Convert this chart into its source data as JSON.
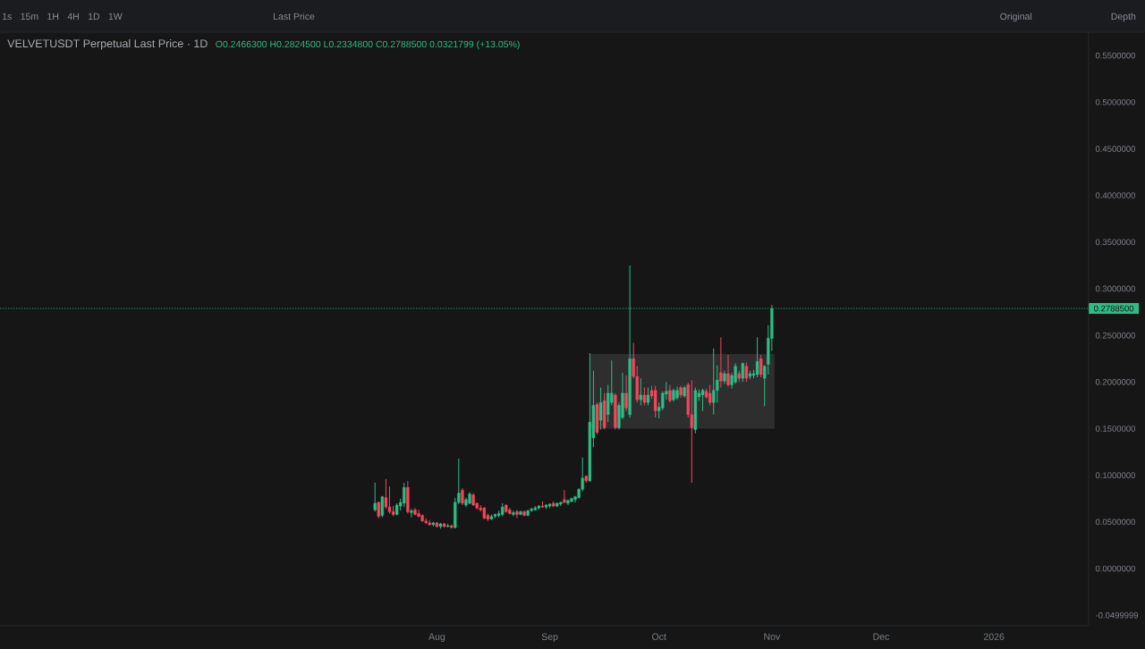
{
  "chart_data": {
    "type": "candlestick",
    "title": "VELVETUSDT Perpetual Last Price · 1D",
    "subtitle": "O0.2466300 H0.2824500 L0.2334800 C0.2788500 0.0321799 (+13.05%)",
    "annotations": [
      "1s",
      "15m",
      "1H",
      "4H",
      "1D",
      "1W",
      "Last Price",
      "Original",
      "Depth"
    ],
    "x": [
      "2025-07-15",
      "2025-07-16",
      "2025-07-17",
      "2025-07-18",
      "2025-07-19",
      "2025-07-20",
      "2025-07-21",
      "2025-07-22",
      "2025-07-23",
      "2025-07-24",
      "2025-07-25",
      "2025-07-26",
      "2025-07-27",
      "2025-07-28",
      "2025-07-29",
      "2025-07-30",
      "2025-07-31",
      "2025-08-01",
      "2025-08-02",
      "2025-08-03",
      "2025-08-04",
      "2025-08-05",
      "2025-08-06",
      "2025-08-07",
      "2025-08-08",
      "2025-08-09",
      "2025-08-10",
      "2025-08-11",
      "2025-08-12",
      "2025-08-13",
      "2025-08-14",
      "2025-08-15",
      "2025-08-16",
      "2025-08-17",
      "2025-08-18",
      "2025-08-19",
      "2025-08-20",
      "2025-08-21",
      "2025-08-22",
      "2025-08-23",
      "2025-08-24",
      "2025-08-25",
      "2025-08-26",
      "2025-08-27",
      "2025-08-28",
      "2025-08-29",
      "2025-08-30",
      "2025-08-31",
      "2025-09-01",
      "2025-09-02",
      "2025-09-03",
      "2025-09-04",
      "2025-09-05",
      "2025-09-06",
      "2025-09-07",
      "2025-09-08",
      "2025-09-09",
      "2025-09-10",
      "2025-09-11",
      "2025-09-12",
      "2025-09-13",
      "2025-09-14",
      "2025-09-15",
      "2025-09-16",
      "2025-09-17",
      "2025-09-18",
      "2025-09-19",
      "2025-09-20",
      "2025-09-21",
      "2025-09-22",
      "2025-09-23",
      "2025-09-24",
      "2025-09-25",
      "2025-09-26",
      "2025-09-27",
      "2025-09-28",
      "2025-09-29",
      "2025-09-30",
      "2025-10-01",
      "2025-10-02",
      "2025-10-03",
      "2025-10-04",
      "2025-10-05",
      "2025-10-06",
      "2025-10-07",
      "2025-10-08",
      "2025-10-09",
      "2025-10-10",
      "2025-10-11",
      "2025-10-12",
      "2025-10-13",
      "2025-10-14",
      "2025-10-15",
      "2025-10-16",
      "2025-10-17",
      "2025-10-18",
      "2025-10-19",
      "2025-10-20",
      "2025-10-21",
      "2025-10-22",
      "2025-10-23",
      "2025-10-24",
      "2025-10-25",
      "2025-10-26",
      "2025-10-27",
      "2025-10-28",
      "2025-10-29",
      "2025-10-30",
      "2025-10-31",
      "2025-11-01"
    ],
    "ohlc": [
      [
        0.063,
        0.092,
        0.061,
        0.07
      ],
      [
        0.071,
        0.072,
        0.054,
        0.056
      ],
      [
        0.057,
        0.078,
        0.055,
        0.077
      ],
      [
        0.076,
        0.096,
        0.064,
        0.066
      ],
      [
        0.066,
        0.088,
        0.059,
        0.061
      ],
      [
        0.061,
        0.067,
        0.056,
        0.058
      ],
      [
        0.058,
        0.07,
        0.057,
        0.068
      ],
      [
        0.067,
        0.075,
        0.062,
        0.071
      ],
      [
        0.07,
        0.092,
        0.066,
        0.087
      ],
      [
        0.087,
        0.094,
        0.059,
        0.061
      ],
      [
        0.06,
        0.064,
        0.055,
        0.062
      ],
      [
        0.063,
        0.065,
        0.057,
        0.058
      ],
      [
        0.059,
        0.063,
        0.055,
        0.056
      ],
      [
        0.057,
        0.058,
        0.05,
        0.051
      ],
      [
        0.051,
        0.054,
        0.048,
        0.049
      ],
      [
        0.049,
        0.052,
        0.046,
        0.047
      ],
      [
        0.047,
        0.05,
        0.045,
        0.049
      ],
      [
        0.049,
        0.05,
        0.044,
        0.045
      ],
      [
        0.045,
        0.049,
        0.043,
        0.048
      ],
      [
        0.048,
        0.049,
        0.044,
        0.045
      ],
      [
        0.045,
        0.048,
        0.044,
        0.046
      ],
      [
        0.046,
        0.047,
        0.043,
        0.044
      ],
      [
        0.044,
        0.076,
        0.043,
        0.071
      ],
      [
        0.071,
        0.118,
        0.069,
        0.081
      ],
      [
        0.084,
        0.086,
        0.068,
        0.07
      ],
      [
        0.068,
        0.076,
        0.066,
        0.074
      ],
      [
        0.07,
        0.082,
        0.069,
        0.08
      ],
      [
        0.079,
        0.081,
        0.067,
        0.068
      ],
      [
        0.07,
        0.071,
        0.063,
        0.065
      ],
      [
        0.065,
        0.068,
        0.061,
        0.063
      ],
      [
        0.065,
        0.066,
        0.053,
        0.054
      ],
      [
        0.057,
        0.059,
        0.051,
        0.053
      ],
      [
        0.053,
        0.058,
        0.052,
        0.056
      ],
      [
        0.056,
        0.059,
        0.054,
        0.058
      ],
      [
        0.057,
        0.062,
        0.055,
        0.059
      ],
      [
        0.058,
        0.07,
        0.056,
        0.066
      ],
      [
        0.068,
        0.069,
        0.06,
        0.061
      ],
      [
        0.063,
        0.065,
        0.058,
        0.059
      ],
      [
        0.058,
        0.062,
        0.056,
        0.06
      ],
      [
        0.061,
        0.063,
        0.054,
        0.058
      ],
      [
        0.058,
        0.062,
        0.057,
        0.061
      ],
      [
        0.061,
        0.062,
        0.056,
        0.057
      ],
      [
        0.057,
        0.063,
        0.056,
        0.062
      ],
      [
        0.062,
        0.065,
        0.061,
        0.064
      ],
      [
        0.063,
        0.067,
        0.062,
        0.065
      ],
      [
        0.065,
        0.068,
        0.063,
        0.067
      ],
      [
        0.067,
        0.072,
        0.065,
        0.066
      ],
      [
        0.066,
        0.069,
        0.064,
        0.068
      ],
      [
        0.067,
        0.07,
        0.065,
        0.069
      ],
      [
        0.07,
        0.072,
        0.066,
        0.067
      ],
      [
        0.067,
        0.071,
        0.066,
        0.07
      ],
      [
        0.069,
        0.072,
        0.067,
        0.071
      ],
      [
        0.074,
        0.084,
        0.07,
        0.071
      ],
      [
        0.07,
        0.074,
        0.068,
        0.073
      ],
      [
        0.072,
        0.076,
        0.071,
        0.075
      ],
      [
        0.074,
        0.078,
        0.071,
        0.077
      ],
      [
        0.076,
        0.086,
        0.075,
        0.085
      ],
      [
        0.085,
        0.119,
        0.083,
        0.097
      ],
      [
        0.099,
        0.1,
        0.092,
        0.094
      ],
      [
        0.094,
        0.231,
        0.093,
        0.157
      ],
      [
        0.14,
        0.212,
        0.13,
        0.175
      ],
      [
        0.176,
        0.178,
        0.144,
        0.146
      ],
      [
        0.159,
        0.194,
        0.149,
        0.178
      ],
      [
        0.18,
        0.188,
        0.149,
        0.151
      ],
      [
        0.165,
        0.197,
        0.157,
        0.188
      ],
      [
        0.178,
        0.223,
        0.175,
        0.188
      ],
      [
        0.186,
        0.188,
        0.149,
        0.151
      ],
      [
        0.151,
        0.178,
        0.149,
        0.175
      ],
      [
        0.162,
        0.21,
        0.16,
        0.188
      ],
      [
        0.188,
        0.207,
        0.169,
        0.172
      ],
      [
        0.165,
        0.325,
        0.162,
        0.225
      ],
      [
        0.225,
        0.242,
        0.204,
        0.206
      ],
      [
        0.206,
        0.217,
        0.178,
        0.181
      ],
      [
        0.181,
        0.204,
        0.175,
        0.186
      ],
      [
        0.186,
        0.194,
        0.175,
        0.178
      ],
      [
        0.178,
        0.194,
        0.175,
        0.186
      ],
      [
        0.191,
        0.196,
        0.182,
        0.185
      ],
      [
        0.191,
        0.196,
        0.162,
        0.169
      ],
      [
        0.169,
        0.178,
        0.161,
        0.173
      ],
      [
        0.172,
        0.19,
        0.17,
        0.188
      ],
      [
        0.187,
        0.2,
        0.181,
        0.19
      ],
      [
        0.191,
        0.197,
        0.178,
        0.18
      ],
      [
        0.181,
        0.193,
        0.179,
        0.191
      ],
      [
        0.183,
        0.195,
        0.181,
        0.191
      ],
      [
        0.194,
        0.196,
        0.183,
        0.186
      ],
      [
        0.185,
        0.196,
        0.183,
        0.194
      ],
      [
        0.197,
        0.199,
        0.162,
        0.165
      ],
      [
        0.165,
        0.202,
        0.092,
        0.151
      ],
      [
        0.149,
        0.194,
        0.145,
        0.191
      ],
      [
        0.184,
        0.192,
        0.18,
        0.188
      ],
      [
        0.186,
        0.193,
        0.169,
        0.191
      ],
      [
        0.19,
        0.193,
        0.182,
        0.184
      ],
      [
        0.188,
        0.197,
        0.175,
        0.178
      ],
      [
        0.178,
        0.236,
        0.165,
        0.191
      ],
      [
        0.191,
        0.218,
        0.178,
        0.202
      ],
      [
        0.21,
        0.248,
        0.194,
        0.201
      ],
      [
        0.201,
        0.212,
        0.198,
        0.209
      ],
      [
        0.209,
        0.229,
        0.195,
        0.197
      ],
      [
        0.197,
        0.21,
        0.193,
        0.207
      ],
      [
        0.2,
        0.22,
        0.198,
        0.217
      ],
      [
        0.209,
        0.212,
        0.2,
        0.204
      ],
      [
        0.204,
        0.221,
        0.2,
        0.22
      ],
      [
        0.217,
        0.221,
        0.2,
        0.204
      ],
      [
        0.206,
        0.212,
        0.203,
        0.209
      ],
      [
        0.207,
        0.213,
        0.204,
        0.209
      ],
      [
        0.208,
        0.248,
        0.205,
        0.222
      ],
      [
        0.225,
        0.229,
        0.205,
        0.208
      ],
      [
        0.204,
        0.218,
        0.174,
        0.217
      ],
      [
        0.219,
        0.261,
        0.208,
        0.247
      ],
      [
        0.24663,
        0.28245,
        0.23348,
        0.27885
      ]
    ],
    "colors": [
      "#2ebd85",
      "#f6465d",
      "#2ebd85",
      "#f6465d",
      "#f6465d",
      "#f6465d",
      "#2ebd85",
      "#2ebd85",
      "#2ebd85",
      "#f6465d",
      "#2ebd85",
      "#f6465d",
      "#f6465d",
      "#f6465d",
      "#f6465d",
      "#f6465d",
      "#2ebd85",
      "#f6465d",
      "#2ebd85",
      "#f6465d",
      "#2ebd85",
      "#f6465d",
      "#2ebd85",
      "#2ebd85",
      "#f6465d",
      "#2ebd85",
      "#2ebd85",
      "#f6465d",
      "#f6465d",
      "#f6465d",
      "#f6465d",
      "#f6465d",
      "#2ebd85",
      "#2ebd85",
      "#2ebd85",
      "#2ebd85",
      "#f6465d",
      "#f6465d",
      "#2ebd85",
      "#f6465d",
      "#2ebd85",
      "#f6465d",
      "#2ebd85",
      "#2ebd85",
      "#2ebd85",
      "#2ebd85",
      "#f6465d",
      "#2ebd85",
      "#2ebd85",
      "#f6465d",
      "#2ebd85",
      "#2ebd85",
      "#f6465d",
      "#2ebd85",
      "#2ebd85",
      "#2ebd85",
      "#2ebd85",
      "#2ebd85",
      "#f6465d",
      "#2ebd85",
      "#2ebd85",
      "#f6465d",
      "#2ebd85",
      "#f6465d",
      "#2ebd85",
      "#2ebd85",
      "#f6465d",
      "#2ebd85",
      "#2ebd85",
      "#f6465d",
      "#2ebd85",
      "#f6465d",
      "#f6465d",
      "#2ebd85",
      "#f6465d",
      "#2ebd85",
      "#f6465d",
      "#f6465d",
      "#2ebd85",
      "#2ebd85",
      "#2ebd85",
      "#f6465d",
      "#2ebd85",
      "#2ebd85",
      "#f6465d",
      "#2ebd85",
      "#f6465d",
      "#f6465d",
      "#2ebd85",
      "#2ebd85",
      "#2ebd85",
      "#f6465d",
      "#f6465d",
      "#2ebd85",
      "#2ebd85",
      "#f6465d",
      "#2ebd85",
      "#f6465d",
      "#2ebd85",
      "#2ebd85",
      "#f6465d",
      "#2ebd85",
      "#f6465d",
      "#2ebd85",
      "#2ebd85",
      "#2ebd85",
      "#f6465d",
      "#2ebd85",
      "#2ebd85",
      "#2ebd85"
    ],
    "series": [
      {
        "type": "area",
        "x": [
          "2025-09-12",
          "2025-11-01T18:00"
        ],
        "values": [
          null,
          null
        ],
        "lower": [
          0.15,
          0.15
        ],
        "upper": [
          0.23,
          0.23
        ],
        "color": "#2e2e2e"
      }
    ],
    "ref_lines": [
      {
        "axis": "y",
        "value": 0.27885,
        "label": "0.2788500",
        "color": "#2ebd85",
        "line_style": "dotted"
      }
    ],
    "xlim": [
      "2025-04-03",
      "2026-01-27"
    ],
    "xticks": [
      {
        "value": "2025-08-01",
        "label": "Aug"
      },
      {
        "value": "2025-09-01",
        "label": "Sep"
      },
      {
        "value": "2025-10-01",
        "label": "Oct"
      },
      {
        "value": "2025-11-01",
        "label": "Nov"
      },
      {
        "value": "2025-12-01",
        "label": "Dec"
      },
      {
        "value": "2026-01-01",
        "label": "2026"
      }
    ],
    "ylim": [
      -0.0613,
      0.575
    ],
    "yticks": [
      {
        "value": -0.0499999,
        "label": "-0.0499999"
      },
      {
        "value": 0,
        "label": "0.0000000"
      },
      {
        "value": 0.05,
        "label": "0.0500000"
      },
      {
        "value": 0.1,
        "label": "0.1000000"
      },
      {
        "value": 0.15,
        "label": "0.1500000"
      },
      {
        "value": 0.2,
        "label": "0.2000000"
      },
      {
        "value": 0.25,
        "label": "0.2500000"
      },
      {
        "value": 0.3,
        "label": "0.3000000"
      },
      {
        "value": 0.35,
        "label": "0.3500000"
      },
      {
        "value": 0.4,
        "label": "0.4000000"
      },
      {
        "value": 0.45,
        "label": "0.4500000"
      },
      {
        "value": 0.5,
        "label": "0.5000000"
      },
      {
        "value": 0.55,
        "label": "0.5500000"
      }
    ]
  }
}
